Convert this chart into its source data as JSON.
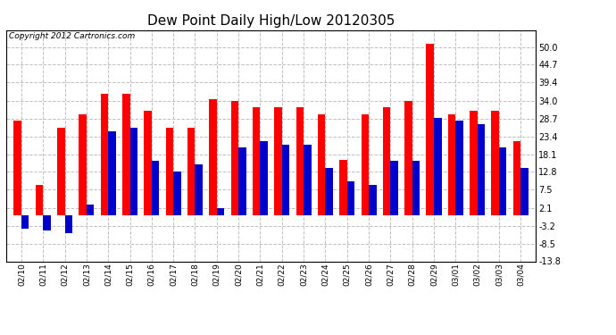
{
  "title": "Dew Point Daily High/Low 20120305",
  "copyright": "Copyright 2012 Cartronics.com",
  "dates": [
    "02/10",
    "02/11",
    "02/12",
    "02/13",
    "02/14",
    "02/15",
    "02/16",
    "02/17",
    "02/18",
    "02/19",
    "02/20",
    "02/21",
    "02/22",
    "02/23",
    "02/24",
    "02/25",
    "02/26",
    "02/27",
    "02/28",
    "02/29",
    "03/01",
    "03/02",
    "03/03",
    "03/04"
  ],
  "highs": [
    28.0,
    9.0,
    26.0,
    30.0,
    36.0,
    36.0,
    31.0,
    26.0,
    26.0,
    34.5,
    34.0,
    32.0,
    32.0,
    32.0,
    30.0,
    16.5,
    30.0,
    32.0,
    34.0,
    51.0,
    30.0,
    31.0,
    31.0,
    22.0
  ],
  "lows": [
    -4.0,
    -4.5,
    -5.5,
    3.0,
    25.0,
    26.0,
    16.0,
    13.0,
    15.0,
    2.0,
    20.0,
    22.0,
    21.0,
    21.0,
    14.0,
    10.0,
    9.0,
    16.0,
    16.0,
    29.0,
    28.0,
    27.0,
    20.0,
    14.0
  ],
  "high_color": "#ff0000",
  "low_color": "#0000cc",
  "bg_color": "#ffffff",
  "grid_color": "#c0c0c0",
  "yticks": [
    50.0,
    44.7,
    39.4,
    34.0,
    28.7,
    23.4,
    18.1,
    12.8,
    7.5,
    2.1,
    -3.2,
    -8.5,
    -13.8
  ],
  "ymin": -13.8,
  "ymax": 55.0,
  "title_fontsize": 11,
  "copyright_fontsize": 6.5,
  "bar_width": 0.35
}
